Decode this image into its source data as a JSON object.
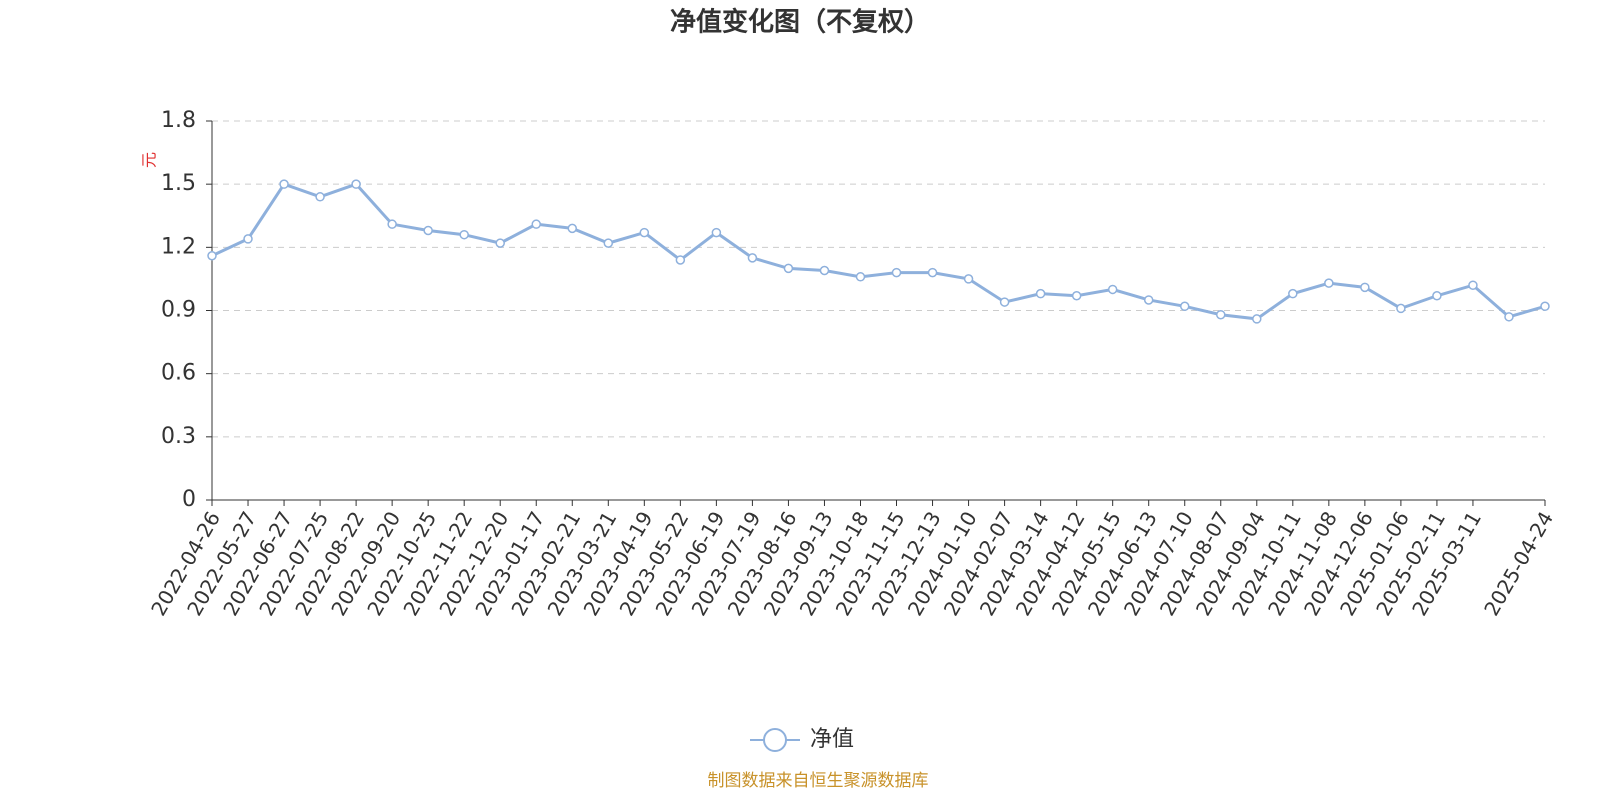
{
  "chart_data": {
    "type": "line",
    "title": "净值变化图（不复权）",
    "y_label": "元",
    "categories": [
      "2022-04-26",
      "2022-05-27",
      "2022-06-27",
      "2022-07-25",
      "2022-08-22",
      "2022-09-20",
      "2022-10-25",
      "2022-11-22",
      "2022-12-20",
      "2023-01-17",
      "2023-02-21",
      "2023-03-21",
      "2023-04-19",
      "2023-05-22",
      "2023-06-19",
      "2023-07-19",
      "2023-08-16",
      "2023-09-13",
      "2023-10-18",
      "2023-11-15",
      "2023-12-13",
      "2024-01-10",
      "2024-02-07",
      "2024-03-14",
      "2024-04-12",
      "2024-05-15",
      "2024-06-13",
      "2024-07-10",
      "2024-08-07",
      "2024-09-04",
      "2024-10-11",
      "2024-11-08",
      "2024-12-06",
      "2025-01-06",
      "2025-02-11",
      "2025-03-11",
      null,
      "2025-04-24"
    ],
    "series": [
      {
        "name": "净值",
        "color": "#8eb0dc",
        "values": [
          1.16,
          1.24,
          1.5,
          1.44,
          1.5,
          1.31,
          1.28,
          1.26,
          1.22,
          1.31,
          1.29,
          1.22,
          1.27,
          1.14,
          1.27,
          1.15,
          1.1,
          1.09,
          1.06,
          1.08,
          1.08,
          1.05,
          0.94,
          0.98,
          0.97,
          1.0,
          0.95,
          0.92,
          0.88,
          0.86,
          0.98,
          1.03,
          1.01,
          0.91,
          0.97,
          1.02,
          0.87,
          0.92
        ]
      }
    ],
    "ylim": [
      0,
      1.8
    ],
    "yticks": [
      0,
      0.3,
      0.6,
      0.9,
      1.2,
      1.5,
      1.8
    ],
    "grid": true,
    "source": "制图数据来自恒生聚源数据库"
  }
}
